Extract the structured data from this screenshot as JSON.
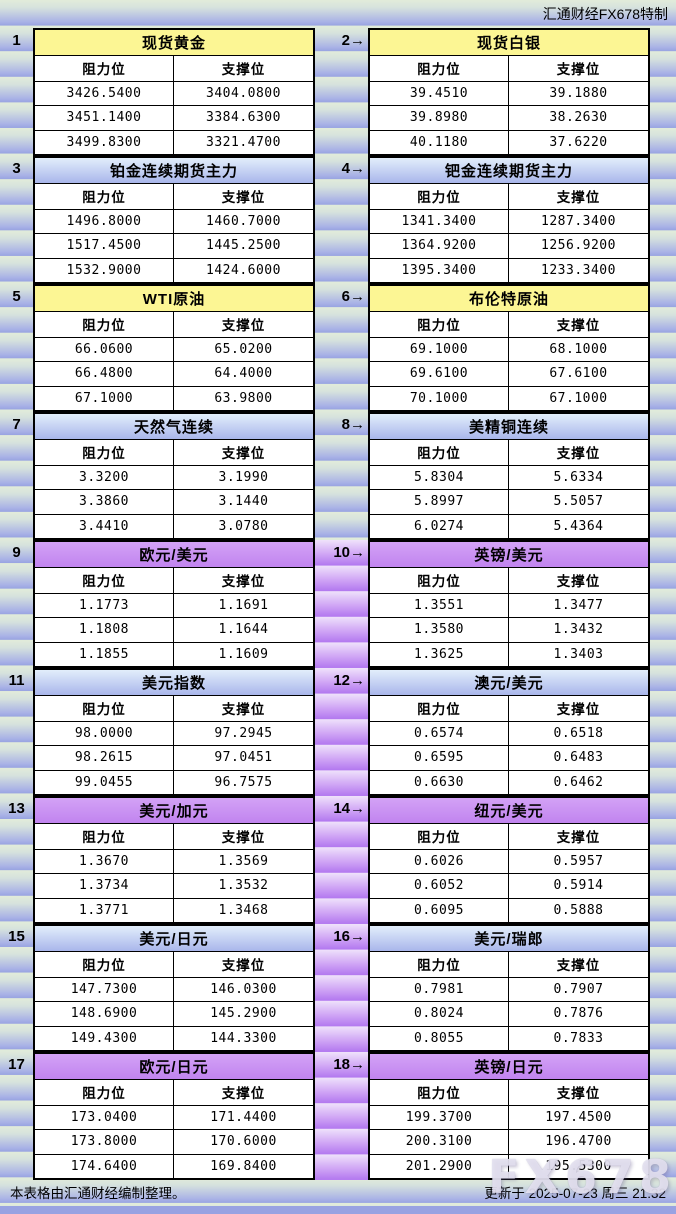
{
  "brand": "汇通财经FX678特制",
  "labels": {
    "resistance": "阻力位",
    "support": "支撑位"
  },
  "chart_data": {
    "type": "table",
    "columns": [
      "阻力位",
      "支撑位"
    ],
    "panels": [
      {
        "num": "1",
        "title": "现货黄金",
        "theme": "yellow",
        "rows": [
          [
            "3426.5400",
            "3404.0800"
          ],
          [
            "3451.1400",
            "3384.6300"
          ],
          [
            "3499.8300",
            "3321.4700"
          ]
        ]
      },
      {
        "num": "2→",
        "title": "现货白银",
        "theme": "yellow",
        "rows": [
          [
            "39.4510",
            "39.1880"
          ],
          [
            "39.8980",
            "38.2630"
          ],
          [
            "40.1180",
            "37.6220"
          ]
        ]
      },
      {
        "num": "3",
        "title": "铂金连续期货主力",
        "theme": "blue",
        "rows": [
          [
            "1496.8000",
            "1460.7000"
          ],
          [
            "1517.4500",
            "1445.2500"
          ],
          [
            "1532.9000",
            "1424.6000"
          ]
        ]
      },
      {
        "num": "4→",
        "title": "钯金连续期货主力",
        "theme": "blue",
        "rows": [
          [
            "1341.3400",
            "1287.3400"
          ],
          [
            "1364.9200",
            "1256.9200"
          ],
          [
            "1395.3400",
            "1233.3400"
          ]
        ]
      },
      {
        "num": "5",
        "title": "WTI原油",
        "theme": "yellow",
        "rows": [
          [
            "66.0600",
            "65.0200"
          ],
          [
            "66.4800",
            "64.4000"
          ],
          [
            "67.1000",
            "63.9800"
          ]
        ]
      },
      {
        "num": "6→",
        "title": "布伦特原油",
        "theme": "yellow",
        "rows": [
          [
            "69.1000",
            "68.1000"
          ],
          [
            "69.6100",
            "67.6100"
          ],
          [
            "70.1000",
            "67.1000"
          ]
        ]
      },
      {
        "num": "7",
        "title": "天然气连续",
        "theme": "blue",
        "rows": [
          [
            "3.3200",
            "3.1990"
          ],
          [
            "3.3860",
            "3.1440"
          ],
          [
            "3.4410",
            "3.0780"
          ]
        ]
      },
      {
        "num": "8→",
        "title": "美精铜连续",
        "theme": "blue",
        "rows": [
          [
            "5.8304",
            "5.6334"
          ],
          [
            "5.8997",
            "5.5057"
          ],
          [
            "6.0274",
            "5.4364"
          ]
        ]
      },
      {
        "num": "9",
        "title": "欧元/美元",
        "theme": "purple",
        "rows": [
          [
            "1.1773",
            "1.1691"
          ],
          [
            "1.1808",
            "1.1644"
          ],
          [
            "1.1855",
            "1.1609"
          ]
        ]
      },
      {
        "num": "10→",
        "title": "英镑/美元",
        "theme": "purple",
        "rows": [
          [
            "1.3551",
            "1.3477"
          ],
          [
            "1.3580",
            "1.3432"
          ],
          [
            "1.3625",
            "1.3403"
          ]
        ]
      },
      {
        "num": "11",
        "title": "美元指数",
        "theme": "blue",
        "rows": [
          [
            "98.0000",
            "97.2945"
          ],
          [
            "98.2615",
            "97.0451"
          ],
          [
            "99.0455",
            "96.7575"
          ]
        ]
      },
      {
        "num": "12→",
        "title": "澳元/美元",
        "theme": "blue",
        "rows": [
          [
            "0.6574",
            "0.6518"
          ],
          [
            "0.6595",
            "0.6483"
          ],
          [
            "0.6630",
            "0.6462"
          ]
        ]
      },
      {
        "num": "13",
        "title": "美元/加元",
        "theme": "purple",
        "rows": [
          [
            "1.3670",
            "1.3569"
          ],
          [
            "1.3734",
            "1.3532"
          ],
          [
            "1.3771",
            "1.3468"
          ]
        ]
      },
      {
        "num": "14→",
        "title": "纽元/美元",
        "theme": "purple",
        "rows": [
          [
            "0.6026",
            "0.5957"
          ],
          [
            "0.6052",
            "0.5914"
          ],
          [
            "0.6095",
            "0.5888"
          ]
        ]
      },
      {
        "num": "15",
        "title": "美元/日元",
        "theme": "blue",
        "rows": [
          [
            "147.7300",
            "146.0300"
          ],
          [
            "148.6900",
            "145.2900"
          ],
          [
            "149.4300",
            "144.3300"
          ]
        ]
      },
      {
        "num": "16→",
        "title": "美元/瑞郎",
        "theme": "blue",
        "rows": [
          [
            "0.7981",
            "0.7907"
          ],
          [
            "0.8024",
            "0.7876"
          ],
          [
            "0.8055",
            "0.7833"
          ]
        ]
      },
      {
        "num": "17",
        "title": "欧元/日元",
        "theme": "purple",
        "rows": [
          [
            "173.0400",
            "171.4400"
          ],
          [
            "173.8000",
            "170.6000"
          ],
          [
            "174.6400",
            "169.8400"
          ]
        ]
      },
      {
        "num": "18→",
        "title": "英镑/日元",
        "theme": "purple",
        "rows": [
          [
            "199.3700",
            "197.4500"
          ],
          [
            "200.3100",
            "196.4700"
          ],
          [
            "201.2900",
            "195.5300"
          ]
        ]
      }
    ]
  },
  "footer": {
    "left": "本表格由汇通财经编制整理。",
    "right": "更新于 2025-07-23 周三 21:32",
    "watermark": "FX678"
  },
  "colors": {
    "yellow_title": "#FCF694",
    "blue_title_top": "#E2EEFB",
    "blue_title_bottom": "#A9B6EB",
    "purple_title": "#C98FF3",
    "band_top": "#E2ECDA",
    "band_bottom": "#98A3E1",
    "gutter_purple_top": "#EFE2FB",
    "gutter_purple_bottom": "#B277EF",
    "border": "#000000"
  }
}
